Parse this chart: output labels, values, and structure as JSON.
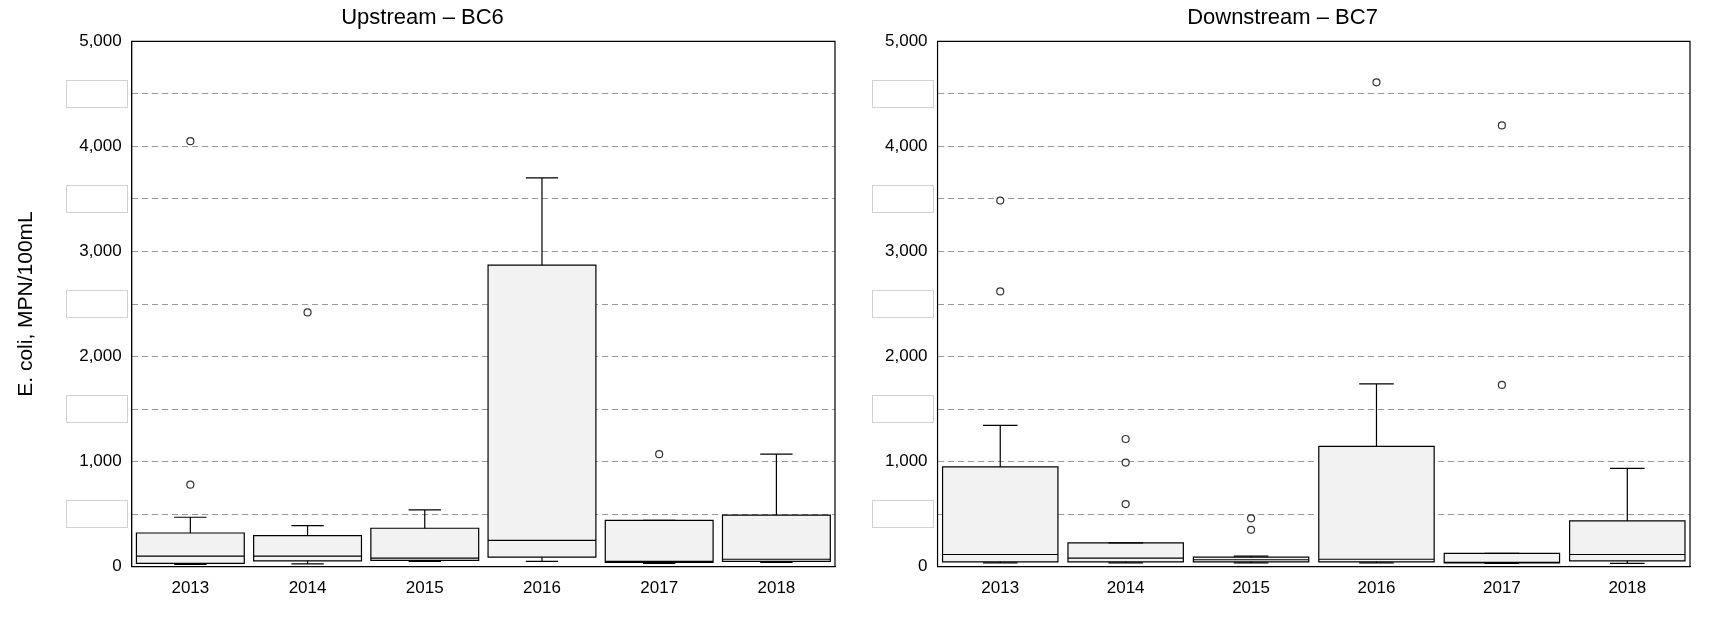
{
  "chart_data": [
    {
      "type": "box",
      "title": "Upstream – BC6",
      "ylabel": "E. coli, MPN/100mL",
      "categories": [
        "2013",
        "2014",
        "2015",
        "2016",
        "2017",
        "2018"
      ],
      "series": [
        {
          "color": "#f2f2f2",
          "boxes": [
            {
              "low": 20,
              "q1": 30,
              "median": 100,
              "q3": 320,
              "high": 470,
              "outliers": [
                780,
                4050
              ]
            },
            {
              "low": 25,
              "q1": 55,
              "median": 100,
              "q3": 295,
              "high": 390,
              "outliers": [
                2420
              ]
            },
            {
              "low": 50,
              "q1": 60,
              "median": 80,
              "q3": 365,
              "high": 540
            },
            {
              "low": 50,
              "q1": 90,
              "median": 250,
              "q3": 2870,
              "high": 3700
            },
            {
              "low": 30,
              "q1": 40,
              "median": 50,
              "q3": 440,
              "high": 440,
              "outliers": [
                1070
              ]
            },
            {
              "low": 40,
              "q1": 50,
              "median": 70,
              "q3": 490,
              "high": 1070
            }
          ]
        }
      ],
      "ylim": [
        0,
        5000
      ],
      "yticks": [
        0,
        {
          "value": 500,
          "label": null
        },
        {
          "value": 1000,
          "label": "1,000"
        },
        {
          "value": 1500,
          "label": null
        },
        {
          "value": 2000,
          "label": "2,000"
        },
        {
          "value": 2500,
          "label": null
        },
        {
          "value": 3000,
          "label": "3,000"
        },
        {
          "value": 3500,
          "label": null
        },
        {
          "value": 4000,
          "label": "4,000"
        },
        {
          "value": 4500,
          "label": null
        },
        {
          "value": 5000,
          "label": "5,000"
        }
      ],
      "grid": "y",
      "legend": false
    },
    {
      "type": "box",
      "title": "Downstream – BC7",
      "categories": [
        "2013",
        "2014",
        "2015",
        "2016",
        "2017",
        "2018"
      ],
      "series": [
        {
          "color": "#f2f2f2",
          "boxes": [
            {
              "low": 35,
              "q1": 45,
              "median": 115,
              "q3": 950,
              "high": 1345,
              "outliers": [
                2620,
                3485
              ]
            },
            {
              "low": 35,
              "q1": 45,
              "median": 80,
              "q3": 225,
              "high": 225,
              "outliers": [
                595,
                990,
                1215
              ]
            },
            {
              "low": 35,
              "q1": 45,
              "median": 65,
              "q3": 90,
              "high": 100,
              "outliers": [
                350,
                460
              ]
            },
            {
              "low": 35,
              "q1": 45,
              "median": 70,
              "q3": 1145,
              "high": 1740,
              "outliers": [
                4610
              ]
            },
            {
              "low": 30,
              "q1": 35,
              "median": 40,
              "q3": 125,
              "high": 125,
              "outliers": [
                1730,
                4200
              ]
            },
            {
              "low": 30,
              "q1": 55,
              "median": 115,
              "q3": 435,
              "high": 935
            }
          ]
        }
      ],
      "ylim": [
        0,
        5000
      ],
      "yticks": [
        0,
        {
          "value": 500,
          "label": null
        },
        {
          "value": 1000,
          "label": "1,000"
        },
        {
          "value": 1500,
          "label": null
        },
        {
          "value": 2000,
          "label": "2,000"
        },
        {
          "value": 2500,
          "label": null
        },
        {
          "value": 3000,
          "label": "3,000"
        },
        {
          "value": 3500,
          "label": null
        },
        {
          "value": 4000,
          "label": "4,000"
        },
        {
          "value": 4500,
          "label": null
        },
        {
          "value": 5000,
          "label": "5,000"
        }
      ],
      "grid": "y",
      "legend": false
    }
  ]
}
